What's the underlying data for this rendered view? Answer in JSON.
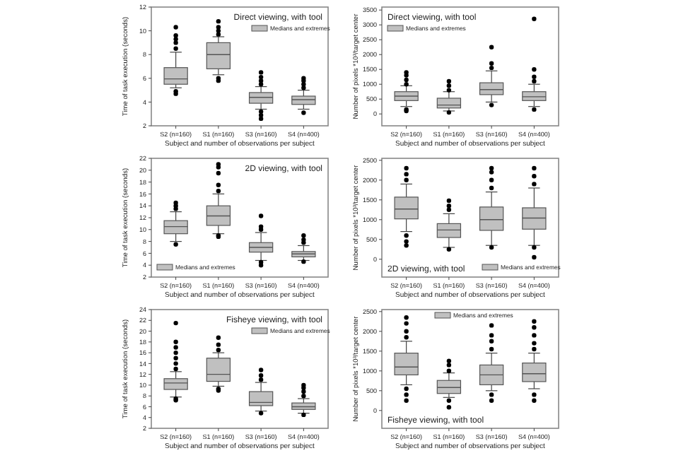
{
  "chart_data": [
    {
      "type": "box",
      "title": "Direct viewing, with tool",
      "xlabel": "Subject and number of observations per subject",
      "ylabel": "Time of task execution (seconds)",
      "categories": [
        "S2 (n=160)",
        "S1 (n=160)",
        "S3 (n=160)",
        "S4 (n=400)"
      ],
      "ylim": [
        2,
        12
      ],
      "yticks": [
        2,
        4,
        6,
        8,
        10,
        12
      ],
      "legend": "top right",
      "series": [
        {
          "name": "Medians and extremes",
          "color": "#c0c0c0",
          "boxes": [
            {
              "low": 5.2,
              "q1": 5.5,
              "median": 5.95,
              "q3": 6.9,
              "high": 8.2,
              "outliers": [
                8.5,
                9.0,
                9.3,
                9.6,
                10.3,
                4.9,
                4.7
              ]
            },
            {
              "low": 6.3,
              "q1": 6.8,
              "median": 8.0,
              "q3": 9.0,
              "high": 9.5,
              "outliers": [
                9.7,
                10.0,
                10.3,
                10.8,
                6.0,
                5.8
              ]
            },
            {
              "low": 3.4,
              "q1": 3.9,
              "median": 4.4,
              "q3": 4.8,
              "high": 5.3,
              "outliers": [
                5.5,
                5.8,
                6.1,
                6.5,
                3.2,
                2.9,
                2.6
              ]
            },
            {
              "low": 3.4,
              "q1": 3.8,
              "median": 4.2,
              "q3": 4.5,
              "high": 5.0,
              "outliers": [
                5.2,
                5.5,
                5.8,
                6.0,
                3.1
              ]
            }
          ]
        }
      ]
    },
    {
      "type": "box",
      "title": "Direct viewing, with tool",
      "xlabel": "Subject and number of observations per subject",
      "ylabel": "Number of pixels *10³/target center",
      "categories": [
        "S2 (n=160)",
        "S1 (n=160)",
        "S3 (n=160)",
        "S4 (n=400)"
      ],
      "ylim": [
        -400,
        3600
      ],
      "yticks": [
        0,
        500,
        1000,
        1500,
        2000,
        2500,
        3000,
        3500
      ],
      "legend": "top left",
      "series": [
        {
          "name": "Medians and extremes",
          "color": "#c0c0c0",
          "boxes": [
            {
              "low": 250,
              "q1": 450,
              "median": 600,
              "q3": 750,
              "high": 950,
              "outliers": [
                1000,
                1150,
                1300,
                1400,
                150,
                100
              ]
            },
            {
              "low": 100,
              "q1": 200,
              "median": 300,
              "q3": 530,
              "high": 750,
              "outliers": [
                800,
                950,
                1100,
                50
              ]
            },
            {
              "low": 400,
              "q1": 650,
              "median": 820,
              "q3": 1050,
              "high": 1450,
              "outliers": [
                1550,
                1700,
                2250,
                300
              ]
            },
            {
              "low": 250,
              "q1": 450,
              "median": 580,
              "q3": 750,
              "high": 1000,
              "outliers": [
                1100,
                1250,
                1500,
                3200,
                150
              ]
            }
          ]
        }
      ]
    },
    {
      "type": "box",
      "title": "2D viewing, with tool",
      "xlabel": "Subject and number of observations per subject",
      "ylabel": "Time of task execution (seconds)",
      "categories": [
        "S2 (n=160)",
        "S1 (n=160)",
        "S3 (n=160)",
        "S4 (n=400)"
      ],
      "ylim": [
        2,
        22
      ],
      "yticks": [
        2,
        4,
        6,
        8,
        10,
        12,
        14,
        16,
        18,
        20,
        22
      ],
      "legend": "bottom left",
      "series": [
        {
          "name": "Medians and extremes",
          "color": "#c0c0c0",
          "boxes": [
            {
              "low": 8.0,
              "q1": 9.3,
              "median": 10.5,
              "q3": 11.5,
              "high": 13.0,
              "outliers": [
                13.5,
                14.0,
                14.5,
                7.5
              ]
            },
            {
              "low": 9.3,
              "q1": 10.7,
              "median": 12.3,
              "q3": 14.0,
              "high": 16.0,
              "outliers": [
                16.5,
                17.5,
                19.5,
                20.5,
                21.0,
                9.0,
                8.8
              ]
            },
            {
              "low": 4.8,
              "q1": 6.2,
              "median": 7.0,
              "q3": 7.8,
              "high": 9.5,
              "outliers": [
                10.0,
                10.5,
                12.3,
                4.5,
                4.0
              ]
            },
            {
              "low": 4.8,
              "q1": 5.4,
              "median": 5.9,
              "q3": 6.3,
              "high": 7.3,
              "outliers": [
                7.8,
                8.3,
                9.0,
                4.6
              ]
            }
          ]
        }
      ]
    },
    {
      "type": "box",
      "title": "2D viewing, with tool",
      "xlabel": "Subject and number of observations per subject",
      "ylabel": "Number of pixels *10³/target center",
      "categories": [
        "S2 (n=160)",
        "S1 (n=160)",
        "S3 (n=160)",
        "S4 (n=400)"
      ],
      "ylim": [
        -450,
        2550
      ],
      "yticks": [
        0,
        500,
        1000,
        1500,
        2000,
        2500
      ],
      "legend": "bottom right",
      "series": [
        {
          "name": "Medians and extremes",
          "color": "#c0c0c0",
          "boxes": [
            {
              "low": 700,
              "q1": 1020,
              "median": 1270,
              "q3": 1570,
              "high": 1900,
              "outliers": [
                2000,
                2150,
                2300,
                600,
                450,
                350
              ]
            },
            {
              "low": 300,
              "q1": 550,
              "median": 740,
              "q3": 900,
              "high": 1150,
              "outliers": [
                1250,
                1350,
                1480,
                250
              ]
            },
            {
              "low": 350,
              "q1": 730,
              "median": 1000,
              "q3": 1320,
              "high": 1700,
              "outliers": [
                1800,
                2000,
                2200,
                2300,
                300
              ]
            },
            {
              "low": 350,
              "q1": 760,
              "median": 1040,
              "q3": 1300,
              "high": 1800,
              "outliers": [
                1900,
                2100,
                2300,
                300,
                50
              ]
            }
          ]
        }
      ]
    },
    {
      "type": "box",
      "title": "Fisheye viewing, with tool",
      "xlabel": "Subject and number of observations per subject",
      "ylabel": "Time of task execution (seconds)",
      "categories": [
        "S2 (n=160)",
        "S1 (n=160)",
        "S3 (n=160)",
        "S4 (n=400)"
      ],
      "ylim": [
        2,
        24
      ],
      "yticks": [
        2,
        4,
        6,
        8,
        10,
        12,
        14,
        16,
        18,
        20,
        22,
        24
      ],
      "legend": "top right",
      "series": [
        {
          "name": "Medians and extremes",
          "color": "#c0c0c0",
          "boxes": [
            {
              "low": 7.8,
              "q1": 9.2,
              "median": 10.4,
              "q3": 11.2,
              "high": 12.5,
              "outliers": [
                13,
                14,
                15,
                16,
                17,
                18,
                21.5,
                7.5,
                7.2
              ]
            },
            {
              "low": 9.8,
              "q1": 10.7,
              "median": 12.0,
              "q3": 15.0,
              "high": 16.0,
              "outliers": [
                16.5,
                17.5,
                18.8,
                9.3,
                9.0
              ]
            },
            {
              "low": 5.2,
              "q1": 6.2,
              "median": 6.8,
              "q3": 8.8,
              "high": 10.5,
              "outliers": [
                11,
                11.8,
                12.8,
                4.8
              ]
            },
            {
              "low": 4.8,
              "q1": 5.5,
              "median": 6.0,
              "q3": 6.7,
              "high": 7.5,
              "outliers": [
                8,
                8.8,
                9.5,
                10,
                4.5
              ]
            }
          ]
        }
      ]
    },
    {
      "type": "box",
      "title": "Fisheye viewing, with tool",
      "xlabel": "Subject and number of observations per subject",
      "ylabel": "Number of pixels *10³/target center",
      "categories": [
        "S2 (n=160)",
        "S1 (n=160)",
        "S3 (n=160)",
        "S4 (n=400)"
      ],
      "ylim": [
        -450,
        2550
      ],
      "yticks": [
        0,
        500,
        1000,
        1500,
        2000,
        2500
      ],
      "legend": "top",
      "series": [
        {
          "name": "Medians and extremes",
          "color": "#c0c0c0",
          "boxes": [
            {
              "low": 650,
              "q1": 900,
              "median": 1100,
              "q3": 1450,
              "high": 1750,
              "outliers": [
                1850,
                2000,
                2200,
                2350,
                550,
                400,
                250
              ]
            },
            {
              "low": 330,
              "q1": 430,
              "median": 580,
              "q3": 760,
              "high": 950,
              "outliers": [
                1000,
                1150,
                1250,
                250,
                80
              ]
            },
            {
              "low": 500,
              "q1": 650,
              "median": 900,
              "q3": 1150,
              "high": 1450,
              "outliers": [
                1550,
                1750,
                1900,
                2150,
                400,
                250
              ]
            },
            {
              "low": 550,
              "q1": 730,
              "median": 930,
              "q3": 1200,
              "high": 1450,
              "outliers": [
                1550,
                1700,
                1900,
                2100,
                2250,
                400,
                250
              ]
            }
          ]
        }
      ]
    }
  ]
}
